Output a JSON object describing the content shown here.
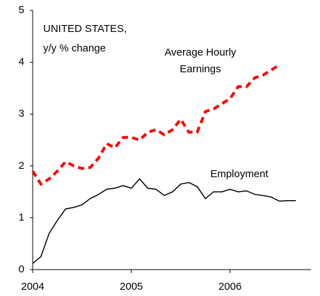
{
  "chart_data": {
    "type": "line",
    "title": [
      "UNITED STATES,",
      "y/y % change"
    ],
    "x": [
      2004.0,
      2004.083,
      2004.167,
      2004.25,
      2004.333,
      2004.417,
      2004.5,
      2004.583,
      2004.667,
      2004.75,
      2004.833,
      2004.917,
      2005.0,
      2005.083,
      2005.167,
      2005.25,
      2005.333,
      2005.417,
      2005.5,
      2005.583,
      2005.667,
      2005.75,
      2005.833,
      2005.917,
      2006.0,
      2006.083,
      2006.167,
      2006.25,
      2006.333,
      2006.417,
      2006.5,
      2006.583,
      2006.667
    ],
    "series": [
      {
        "name": "Average Hourly Earnings",
        "color": "#ff0000",
        "dashed": true,
        "values": [
          1.9,
          1.65,
          1.75,
          1.9,
          2.08,
          2.0,
          1.95,
          1.97,
          2.15,
          2.43,
          2.35,
          2.55,
          2.55,
          2.5,
          2.65,
          2.7,
          2.6,
          2.7,
          2.9,
          2.65,
          2.65,
          3.05,
          3.1,
          3.2,
          3.3,
          3.53,
          3.53,
          3.7,
          3.75,
          3.85,
          3.95,
          null,
          null
        ]
      },
      {
        "name": "Employment",
        "color": "#000000",
        "dashed": false,
        "values": [
          0.12,
          0.25,
          0.7,
          0.95,
          1.17,
          1.2,
          1.25,
          1.37,
          1.45,
          1.55,
          1.57,
          1.62,
          1.57,
          1.75,
          1.57,
          1.55,
          1.43,
          1.5,
          1.65,
          1.68,
          1.6,
          1.37,
          1.5,
          1.5,
          1.55,
          1.5,
          1.52,
          1.45,
          1.43,
          1.4,
          1.32,
          1.33,
          1.33
        ]
      }
    ],
    "xlim": [
      2004,
      2006.82
    ],
    "xticks": [
      2004,
      2005,
      2006
    ],
    "ylim": [
      0,
      5
    ],
    "yticks": [
      0,
      1,
      2,
      3,
      4,
      5
    ],
    "grid": false
  }
}
